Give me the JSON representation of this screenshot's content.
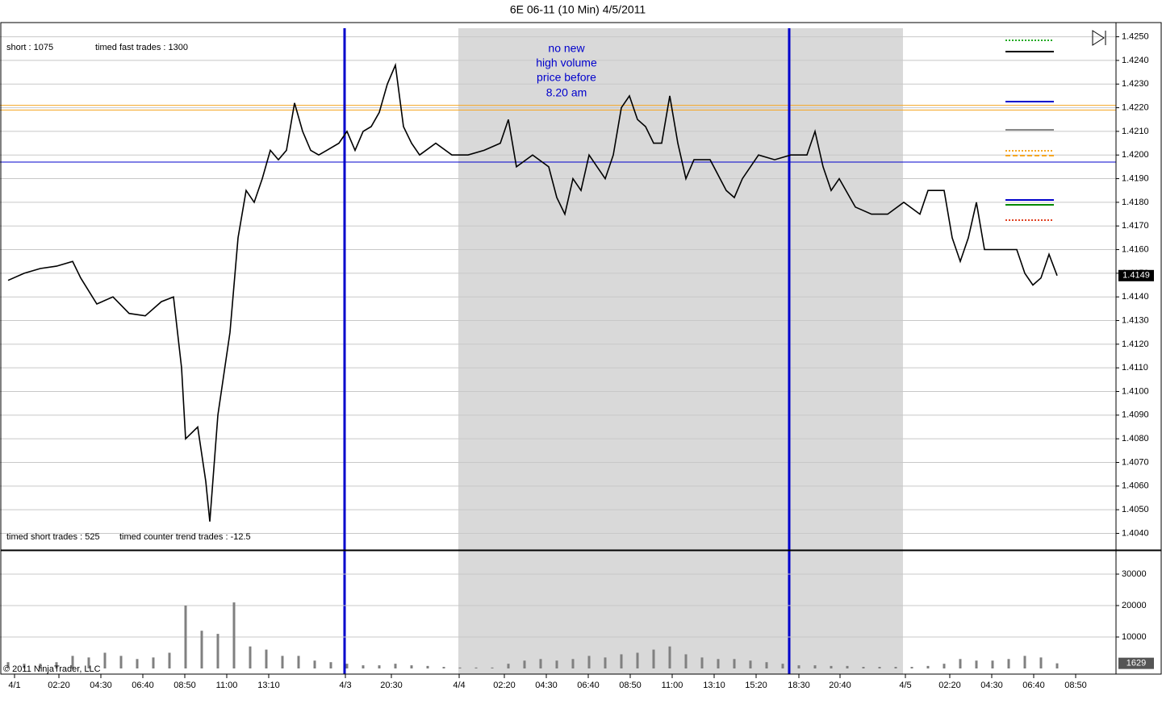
{
  "chart_data": [
    {
      "type": "line",
      "title": "6E 06-11 (10 Min)  4/5/2011",
      "annotations": [
        "short : 1075",
        "timed fast trades : 1300",
        "timed short trades : 525",
        "timed counter trend trades : -12.5",
        "no new",
        "high volume",
        "price before",
        "8.20 am",
        "© 2011 NinjaTrader, LLC"
      ],
      "xlim": [
        0,
        345.75
      ],
      "xticks": [
        {
          "value": 4.5,
          "label": "4/1"
        },
        {
          "value": 18.25,
          "label": "02:20"
        },
        {
          "value": 31.25,
          "label": "04:30"
        },
        {
          "value": 44.25,
          "label": "06:40"
        },
        {
          "value": 57.25,
          "label": "08:50"
        },
        {
          "value": 70.25,
          "label": "11:00"
        },
        {
          "value": 83.25,
          "label": "13:10"
        },
        {
          "value": 107,
          "label": "4/3"
        },
        {
          "value": 121.25,
          "label": "20:30"
        },
        {
          "value": 142.25,
          "label": "4/4"
        },
        {
          "value": 156.25,
          "label": "02:20"
        },
        {
          "value": 169.25,
          "label": "04:30"
        },
        {
          "value": 182.25,
          "label": "06:40"
        },
        {
          "value": 195.25,
          "label": "08:50"
        },
        {
          "value": 208.25,
          "label": "11:00"
        },
        {
          "value": 221.25,
          "label": "13:10"
        },
        {
          "value": 234.25,
          "label": "15:20"
        },
        {
          "value": 247.5,
          "label": "18:30"
        },
        {
          "value": 260.25,
          "label": "20:40"
        },
        {
          "value": 280.5,
          "label": "4/5"
        },
        {
          "value": 294.25,
          "label": "02:20"
        },
        {
          "value": 307.25,
          "label": "04:30"
        },
        {
          "value": 320.25,
          "label": "06:40"
        },
        {
          "value": 333.25,
          "label": "08:50"
        }
      ],
      "ylim": [
        1.4033,
        1.4256
      ],
      "yticks": [
        {
          "value": 1.404,
          "label": "1.4040"
        },
        {
          "value": 1.405,
          "label": "1.4050"
        },
        {
          "value": 1.406,
          "label": "1.4060"
        },
        {
          "value": 1.407,
          "label": "1.4070"
        },
        {
          "value": 1.408,
          "label": "1.4080"
        },
        {
          "value": 1.409,
          "label": "1.4090"
        },
        {
          "value": 1.41,
          "label": "1.4100"
        },
        {
          "value": 1.411,
          "label": "1.4110"
        },
        {
          "value": 1.412,
          "label": "1.4120"
        },
        {
          "value": 1.413,
          "label": "1.4130"
        },
        {
          "value": 1.414,
          "label": "1.4140"
        },
        {
          "value": 1.415,
          "label": "1.4150"
        },
        {
          "value": 1.416,
          "label": "1.4160"
        },
        {
          "value": 1.417,
          "label": "1.4170"
        },
        {
          "value": 1.418,
          "label": "1.4180"
        },
        {
          "value": 1.419,
          "label": "1.4190"
        },
        {
          "value": 1.42,
          "label": "1.4200"
        },
        {
          "value": 1.421,
          "label": "1.4210"
        },
        {
          "value": 1.422,
          "label": "1.4220"
        },
        {
          "value": 1.423,
          "label": "1.4230"
        },
        {
          "value": 1.424,
          "label": "1.4240"
        },
        {
          "value": 1.425,
          "label": "1.4250"
        }
      ],
      "grid": true,
      "shade": [
        142,
        279.75
      ],
      "vlines": [
        106.75,
        244.5
      ],
      "hlines": [
        {
          "value": 1.4221,
          "color": "#f5a623"
        },
        {
          "value": 1.4219,
          "color": "#f5a623"
        },
        {
          "value": 1.4197,
          "color": "#0000cc"
        }
      ],
      "series": [
        {
          "color": "#000000",
          "x": [
            2.5,
            7.5,
            12.5,
            17.5,
            22.5,
            25,
            30,
            35,
            40,
            45,
            50,
            53.75,
            56.25,
            57.5,
            61.25,
            63.75,
            65,
            67.5,
            71.25,
            73.75,
            76.25,
            78.75,
            81.25,
            83.75,
            86.25,
            88.75,
            91.25,
            93.75,
            96.25,
            98.75,
            101.25,
            105,
            107.5,
            110,
            112.5,
            115,
            117.5,
            120,
            122.5,
            125,
            127.5,
            130,
            135,
            140,
            145,
            150,
            155,
            157.5,
            160,
            165,
            170,
            172.5,
            175,
            177.5,
            180,
            182.5,
            185,
            187.5,
            190,
            192.5,
            195,
            197.5,
            200,
            202.5,
            205,
            207.5,
            210,
            212.5,
            215,
            220,
            225,
            227.5,
            230,
            235,
            240,
            245,
            250,
            252.5,
            255,
            257.5,
            260,
            265,
            270,
            275,
            280,
            285,
            287.5,
            292.5,
            295,
            297.5,
            300,
            302.5,
            305,
            310,
            315,
            317.5,
            320,
            322.5,
            325,
            327.5
          ],
          "values": [
            1.4147,
            1.415,
            1.4152,
            1.4153,
            1.4155,
            1.4148,
            1.4137,
            1.414,
            1.4133,
            1.4132,
            1.4138,
            1.414,
            1.411,
            1.408,
            1.4085,
            1.4062,
            1.4045,
            1.409,
            1.4125,
            1.4165,
            1.4185,
            1.418,
            1.419,
            1.4202,
            1.4198,
            1.4202,
            1.4222,
            1.421,
            1.4202,
            1.42,
            1.4202,
            1.4205,
            1.421,
            1.4202,
            1.421,
            1.4212,
            1.4218,
            1.423,
            1.4238,
            1.4212,
            1.4205,
            1.42,
            1.4205,
            1.42,
            1.42,
            1.4202,
            1.4205,
            1.4215,
            1.4195,
            1.42,
            1.4195,
            1.4182,
            1.4175,
            1.419,
            1.4185,
            1.42,
            1.4195,
            1.419,
            1.42,
            1.422,
            1.4225,
            1.4215,
            1.4212,
            1.4205,
            1.4205,
            1.4225,
            1.4205,
            1.419,
            1.4198,
            1.4198,
            1.4185,
            1.4182,
            1.419,
            1.42,
            1.4198,
            1.42,
            1.42,
            1.421,
            1.4195,
            1.4185,
            1.419,
            1.4178,
            1.4175,
            1.4175,
            1.418,
            1.4175,
            1.4185,
            1.4185,
            1.4165,
            1.4155,
            1.4165,
            1.418,
            1.416,
            1.416,
            1.416,
            1.415,
            1.4145,
            1.4148,
            1.4158,
            1.4149
          ]
        }
      ]
    },
    {
      "type": "bar",
      "xlim": [
        0,
        345.75
      ],
      "ylim": [
        0,
        37000
      ],
      "yticks": [
        10000,
        20000,
        30000
      ],
      "grid": true,
      "series": [
        {
          "color": "#808080",
          "x": [
            2.5,
            7.5,
            12.5,
            17.5,
            22.5,
            27.5,
            32.5,
            37.5,
            42.5,
            47.5,
            52.5,
            57.5,
            62.5,
            67.5,
            72.5,
            77.5,
            82.5,
            87.5,
            92.5,
            97.5,
            102.5,
            107.5,
            112.5,
            117.5,
            122.5,
            127.5,
            132.5,
            137.5,
            142.5,
            147.5,
            152.5,
            157.5,
            162.5,
            167.5,
            172.5,
            177.5,
            182.5,
            187.5,
            192.5,
            197.5,
            202.5,
            207.5,
            212.5,
            217.5,
            222.5,
            227.5,
            232.5,
            237.5,
            242.5,
            247.5,
            252.5,
            257.5,
            262.5,
            267.5,
            272.5,
            277.5,
            282.5,
            287.5,
            292.5,
            297.5,
            302.5,
            307.5,
            312.5,
            317.5,
            322.5,
            327.5
          ],
          "values": [
            2000,
            1500,
            1500,
            2000,
            4000,
            3500,
            5000,
            4000,
            3000,
            3500,
            5000,
            20000,
            12000,
            11000,
            21000,
            7000,
            6000,
            4000,
            4000,
            2500,
            2000,
            1500,
            1000,
            1000,
            1500,
            1000,
            800,
            500,
            300,
            300,
            300,
            1500,
            2500,
            3000,
            2500,
            3000,
            4000,
            3500,
            4500,
            5000,
            6000,
            7000,
            4500,
            3500,
            3000,
            3000,
            2500,
            2000,
            1500,
            1000,
            1000,
            800,
            800,
            500,
            500,
            500,
            500,
            800,
            1500,
            3000,
            2500,
            2500,
            3000,
            4000,
            3500,
            1629
          ]
        }
      ]
    }
  ]
}
